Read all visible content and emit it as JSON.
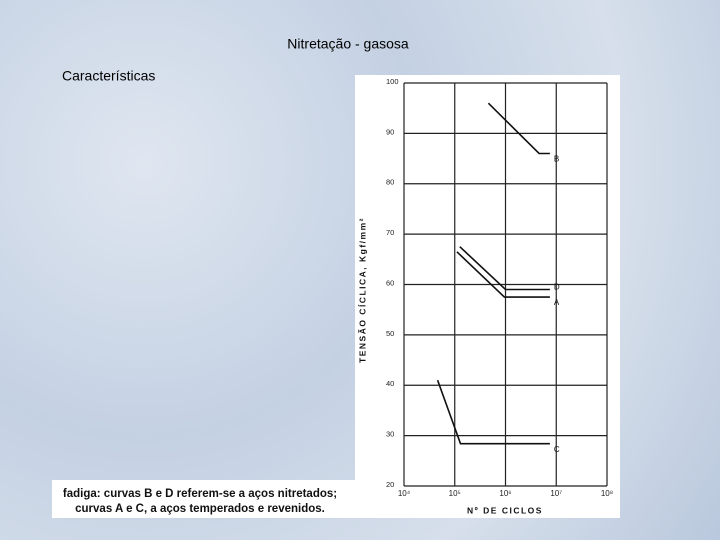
{
  "page_title": "Nitretação - gasosa",
  "heading": "Características",
  "caption": [
    "fadiga: curvas B e D referem-se a aços nitretados;",
    "curvas A e C, a aços temperados e revenidos."
  ],
  "chart_data": {
    "type": "line",
    "ylabel": "TENSÃO CÍCLICA, Kgf/mm²",
    "xlabel": "Nº DE CICLOS",
    "xscale": "log",
    "grid": true,
    "xlim": [
      10000,
      100000000
    ],
    "xticks": [
      {
        "value": 10000,
        "label": "10⁴"
      },
      {
        "value": 100000,
        "label": "10⁵"
      },
      {
        "value": 1000000,
        "label": "10⁶"
      },
      {
        "value": 10000000,
        "label": "10⁷"
      },
      {
        "value": 100000000,
        "label": "10⁸"
      }
    ],
    "ylim": [
      20,
      100
    ],
    "yticks": [
      20,
      30,
      40,
      50,
      60,
      70,
      80,
      90,
      100
    ],
    "series": [
      {
        "name": "B",
        "color": "#111111",
        "x": [
          460000,
          4600000,
          7500000
        ],
        "values": [
          96,
          86,
          86
        ]
      },
      {
        "name": "D",
        "color": "#111111",
        "x": [
          126000,
          1000000,
          7500000
        ],
        "values": [
          67.5,
          59,
          59
        ]
      },
      {
        "name": "A",
        "color": "#111111",
        "x": [
          110000,
          950000,
          7500000
        ],
        "values": [
          66.5,
          57.5,
          57.5
        ]
      },
      {
        "name": "C",
        "color": "#111111",
        "x": [
          46000,
          130000,
          7500000
        ],
        "values": [
          41,
          28.4,
          28.4
        ]
      }
    ]
  }
}
